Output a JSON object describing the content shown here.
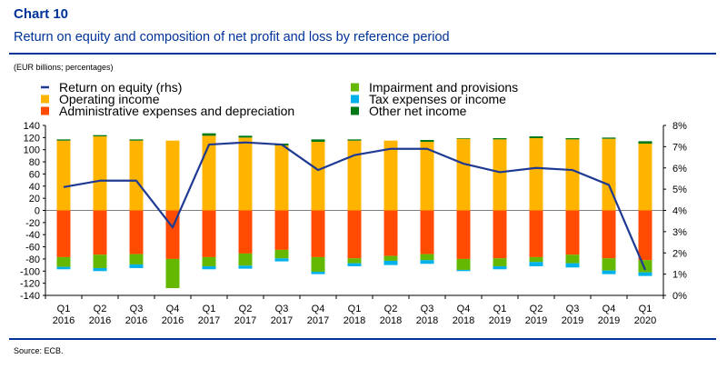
{
  "header": {
    "chart_number": "Chart 10",
    "title": "Return on equity and composition of net profit and loss by reference period",
    "units": "(EUR billions; percentages)"
  },
  "footer": {
    "source": "Source: ECB."
  },
  "colors": {
    "brand_blue": "#003399",
    "operating_income": "#FFB400",
    "admin_expenses": "#FF4B00",
    "impairment": "#65B800",
    "tax": "#00B1EA",
    "other": "#007816",
    "roe_line": "#1F3A93"
  },
  "chart_data": {
    "type": "bar",
    "stacked": true,
    "categories": [
      "Q1 2016",
      "Q2 2016",
      "Q3 2016",
      "Q4 2016",
      "Q1 2017",
      "Q2 2017",
      "Q3 2017",
      "Q4 2017",
      "Q1 2018",
      "Q2 2018",
      "Q3 2018",
      "Q4 2018",
      "Q1 2019",
      "Q2 2019",
      "Q3 2019",
      "Q4 2019",
      "Q1 2020"
    ],
    "category_lines": [
      [
        "Q1",
        "2016"
      ],
      [
        "Q2",
        "2016"
      ],
      [
        "Q3",
        "2016"
      ],
      [
        "Q4",
        "2016"
      ],
      [
        "Q1",
        "2017"
      ],
      [
        "Q2",
        "2017"
      ],
      [
        "Q3",
        "2017"
      ],
      [
        "Q4",
        "2017"
      ],
      [
        "Q1",
        "2018"
      ],
      [
        "Q2",
        "2018"
      ],
      [
        "Q3",
        "2018"
      ],
      [
        "Q4",
        "2018"
      ],
      [
        "Q1",
        "2019"
      ],
      [
        "Q2",
        "2019"
      ],
      [
        "Q3",
        "2019"
      ],
      [
        "Q4",
        "2019"
      ],
      [
        "Q1",
        "2020"
      ]
    ],
    "legend": [
      {
        "label": "Return on equity (rhs)",
        "kind": "line",
        "color": "#1F3A93"
      },
      {
        "label": "Impairment and provisions",
        "kind": "box",
        "color": "#65B800"
      },
      {
        "label": "Operating income",
        "kind": "box",
        "color": "#FFB400"
      },
      {
        "label": "Tax expenses or income",
        "kind": "box",
        "color": "#00B1EA"
      },
      {
        "label": "Administrative expenses and depreciation",
        "kind": "box",
        "color": "#FF4B00"
      },
      {
        "label": "Other net income",
        "kind": "box",
        "color": "#007816"
      }
    ],
    "legend_columns": 2,
    "series": [
      {
        "name": "Operating income",
        "axis": "left",
        "color": "#FFB400",
        "values": [
          115,
          122,
          115,
          115,
          123,
          120,
          107,
          113,
          115,
          115,
          113,
          118,
          117,
          119,
          117,
          118,
          110
        ]
      },
      {
        "name": "Other net income",
        "axis": "left",
        "color": "#007816",
        "values": [
          2,
          2,
          2,
          0,
          4,
          3,
          3,
          4,
          2,
          0,
          3,
          1,
          2,
          3,
          2,
          2,
          4
        ]
      },
      {
        "name": "Administrative expenses and depreciation",
        "axis": "left",
        "color": "#FF4B00",
        "values": [
          -77,
          -73,
          -72,
          -80,
          -77,
          -71,
          -65,
          -77,
          -79,
          -75,
          -72,
          -80,
          -79,
          -77,
          -73,
          -79,
          -82
        ]
      },
      {
        "name": "Impairment and provisions",
        "axis": "left",
        "color": "#65B800",
        "values": [
          -16,
          -22,
          -17,
          -48,
          -15,
          -20,
          -14,
          -24,
          -8,
          -8,
          -10,
          -18,
          -13,
          -8,
          -14,
          -20,
          -20
        ]
      },
      {
        "name": "Tax expenses or income",
        "axis": "left",
        "color": "#00B1EA",
        "values": [
          -4,
          -5,
          -6,
          0,
          -5,
          -5,
          -5,
          -4,
          -5,
          -7,
          -6,
          -2,
          -5,
          -7,
          -7,
          -6,
          -6
        ]
      },
      {
        "name": "Return on equity (rhs)",
        "axis": "right",
        "type": "line",
        "color": "#1F3A93",
        "values": [
          5.1,
          5.4,
          5.4,
          3.2,
          7.1,
          7.2,
          7.1,
          5.9,
          6.6,
          6.9,
          6.9,
          6.2,
          5.8,
          6.0,
          5.9,
          5.2,
          1.2
        ]
      }
    ],
    "y_left": {
      "min": -140,
      "max": 140,
      "step": 20,
      "ticks": [
        "140",
        "120",
        "100",
        "80",
        "60",
        "40",
        "20",
        "0",
        "-20",
        "-40",
        "-60",
        "-80",
        "-100",
        "-120",
        "-140"
      ]
    },
    "y_right": {
      "min": 0,
      "max": 8,
      "step": 1,
      "ticks": [
        "8%",
        "7%",
        "6%",
        "5%",
        "4%",
        "3%",
        "2%",
        "1%",
        "0%"
      ]
    },
    "gridlines": false
  }
}
